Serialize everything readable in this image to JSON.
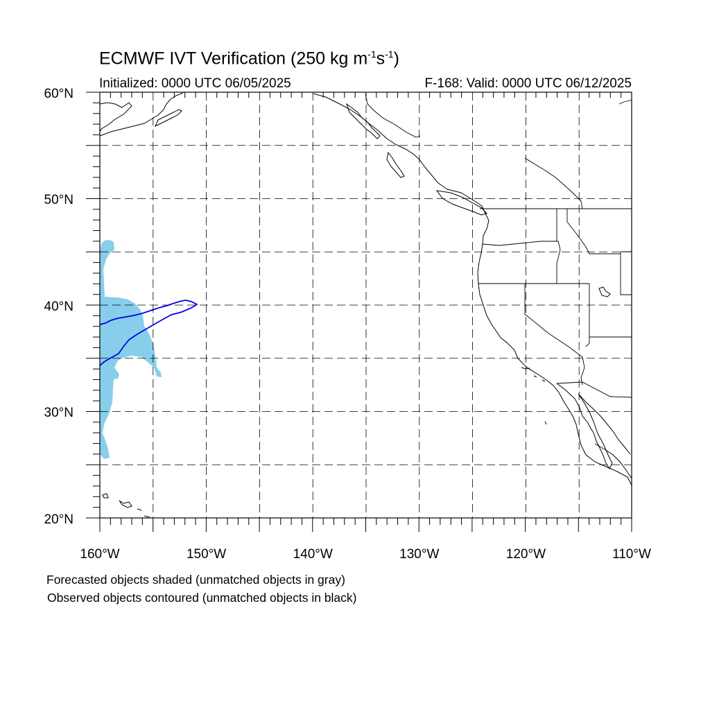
{
  "title": {
    "main": "ECMWF IVT Verification (250 kg m",
    "exp1": "-1",
    "mid": "s",
    "exp2": "-1",
    "end": ")"
  },
  "initialized": "Initialized: 0000 UTC 06/05/2025",
  "valid": "F-168: Valid: 0000 UTC 06/12/2025",
  "axes": {
    "lat_labels": [
      "60°N",
      "50°N",
      "40°N",
      "30°N",
      "20°N"
    ],
    "lon_labels": [
      "160°W",
      "150°W",
      "140°W",
      "130°W",
      "120°W",
      "110°W"
    ]
  },
  "legend": {
    "forecast": "Forecasted objects shaded (unmatched objects in gray)",
    "observed": "Observed objects contoured (unmatched objects in black)"
  },
  "colors": {
    "forecast_matched": "#87ceeb",
    "observed_matched": "#0000ee",
    "coastline": "#000000",
    "grid": "#000000"
  },
  "map_extent": {
    "lon": [
      -160,
      -110
    ],
    "lat": [
      20,
      60
    ],
    "grid_spacing_deg": 5
  }
}
